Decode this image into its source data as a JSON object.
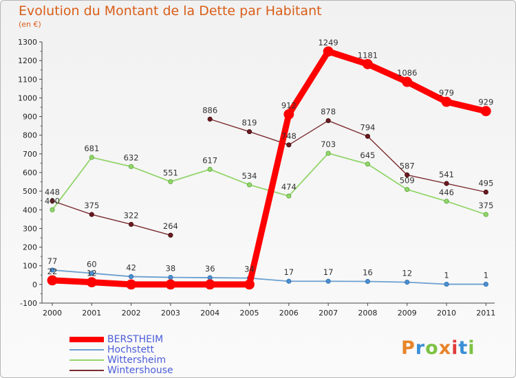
{
  "title": "Evolution du Montant de la Dette par Habitant",
  "subtitle": "(en €)",
  "logo": {
    "text": "Proxiti",
    "colors": [
      "#e8842a",
      "#3a8fd6",
      "#7cc242",
      "#e8842a",
      "#e23a3a",
      "#3a8fd6",
      "#7cc242"
    ]
  },
  "chart_data": {
    "type": "line",
    "title": "Evolution du Montant de la Dette par Habitant",
    "ylabel": "(en €)",
    "x": [
      "2000",
      "2001",
      "2002",
      "2003",
      "2004",
      "2005",
      "2006",
      "2007",
      "2008",
      "2009",
      "2010",
      "2011"
    ],
    "ylim": [
      -100,
      1300
    ],
    "yticks": [
      -100,
      0,
      100,
      200,
      300,
      400,
      500,
      600,
      700,
      800,
      900,
      1000,
      1100,
      1200,
      1300
    ],
    "grid": false,
    "legend_position": "bottom-left",
    "series": [
      {
        "name": "BERSTHEIM",
        "color": "#ff0000",
        "values": [
          22,
          12,
          0,
          0,
          0,
          0,
          912,
          1249,
          1181,
          1086,
          979,
          929
        ],
        "labels": [
          "22",
          "12",
          "",
          "",
          "",
          "",
          "912",
          "1249",
          "1181",
          "1086",
          "979",
          "929"
        ]
      },
      {
        "name": "Hochstett",
        "color": "#6a9fd0",
        "values": [
          77,
          60,
          42,
          38,
          36,
          34,
          17,
          17,
          16,
          12,
          1,
          1
        ],
        "labels": [
          "77",
          "60",
          "42",
          "38",
          "36",
          "34",
          "17",
          "17",
          "16",
          "12",
          "1",
          "1"
        ]
      },
      {
        "name": "Wittersheim",
        "color": "#92d56a",
        "values": [
          400,
          681,
          632,
          551,
          617,
          534,
          474,
          703,
          645,
          509,
          446,
          375
        ],
        "labels": [
          "400",
          "681",
          "632",
          "551",
          "617",
          "534",
          "474",
          "703",
          "645",
          "509",
          "446",
          "375"
        ]
      },
      {
        "name": "Wintershouse",
        "color": "#7a2a2e",
        "values": [
          448,
          375,
          322,
          264,
          886,
          819,
          748,
          878,
          794,
          587,
          541,
          495
        ],
        "breaks_after_index": 3,
        "labels": [
          "448",
          "375",
          "322",
          "264",
          "886",
          "819",
          "748",
          "878",
          "794",
          "587",
          "541",
          "495"
        ]
      }
    ]
  }
}
